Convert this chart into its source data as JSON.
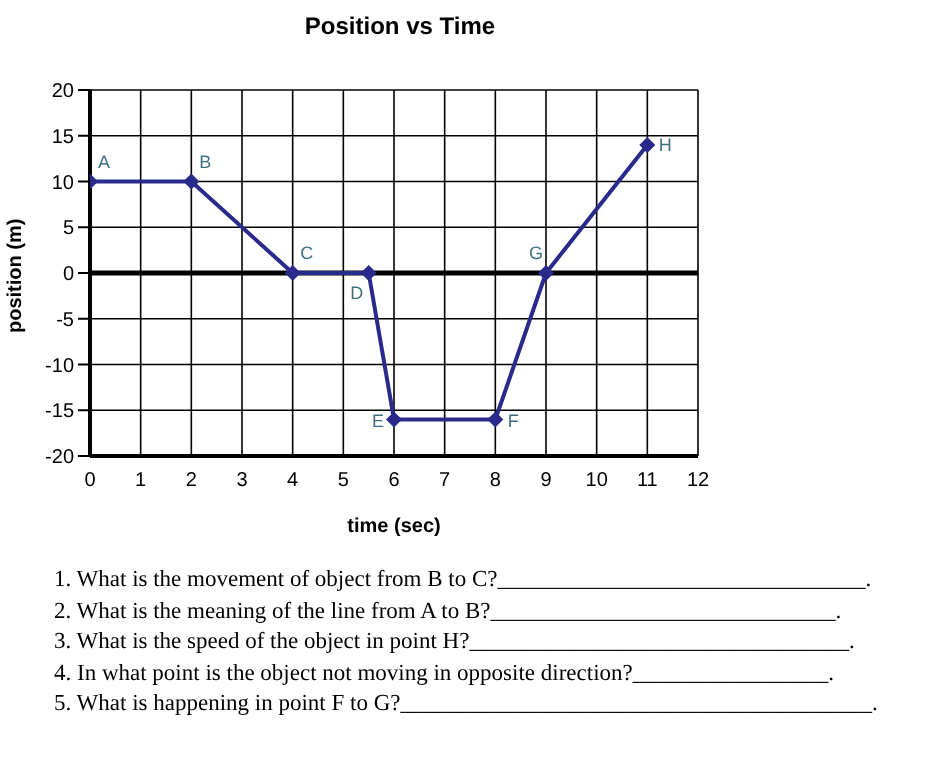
{
  "chart_data": {
    "type": "line",
    "title": "Position vs Time",
    "xlabel": "time (sec)",
    "ylabel": "position (m)",
    "x": [
      0,
      2,
      4,
      5.5,
      6,
      8,
      9,
      11
    ],
    "series": [
      {
        "color": "#2a2a8c",
        "values": [
          10,
          10,
          0,
          0,
          -16,
          -16,
          0,
          14
        ]
      }
    ],
    "xlim": [
      0,
      12
    ],
    "xticks": [
      0,
      1,
      2,
      3,
      4,
      5,
      6,
      7,
      8,
      9,
      10,
      11,
      12
    ],
    "ylim": [
      -20,
      20
    ],
    "yticks": [
      -20,
      -15,
      -10,
      -5,
      0,
      5,
      10,
      15,
      20
    ],
    "grid": true,
    "marker": "diamond",
    "line_style": "solid",
    "ref_lines": [
      {
        "axis": "y",
        "value": 0,
        "color": "#000000"
      }
    ],
    "annotations": [
      {
        "text": "A",
        "x": 0,
        "y": 10
      },
      {
        "text": "B",
        "x": 2,
        "y": 10
      },
      {
        "text": "C",
        "x": 4,
        "y": 0
      },
      {
        "text": "D",
        "x": 5.5,
        "y": 0
      },
      {
        "text": "E",
        "x": 6,
        "y": -16
      },
      {
        "text": "F",
        "x": 8,
        "y": -16
      },
      {
        "text": "G",
        "x": 9,
        "y": 0
      },
      {
        "text": "H",
        "x": 11,
        "y": 14
      },
      "1. What is the movement of object from B to C?________________________________.",
      "2. What is the meaning of the line from A to B?______________________________.",
      "3. What is the speed of the object in point H?_________________________________.",
      "4. In what point is the object not moving in opposite direction?_________________.",
      "5. What is happening in point F to G?_________________________________________."
    ]
  }
}
